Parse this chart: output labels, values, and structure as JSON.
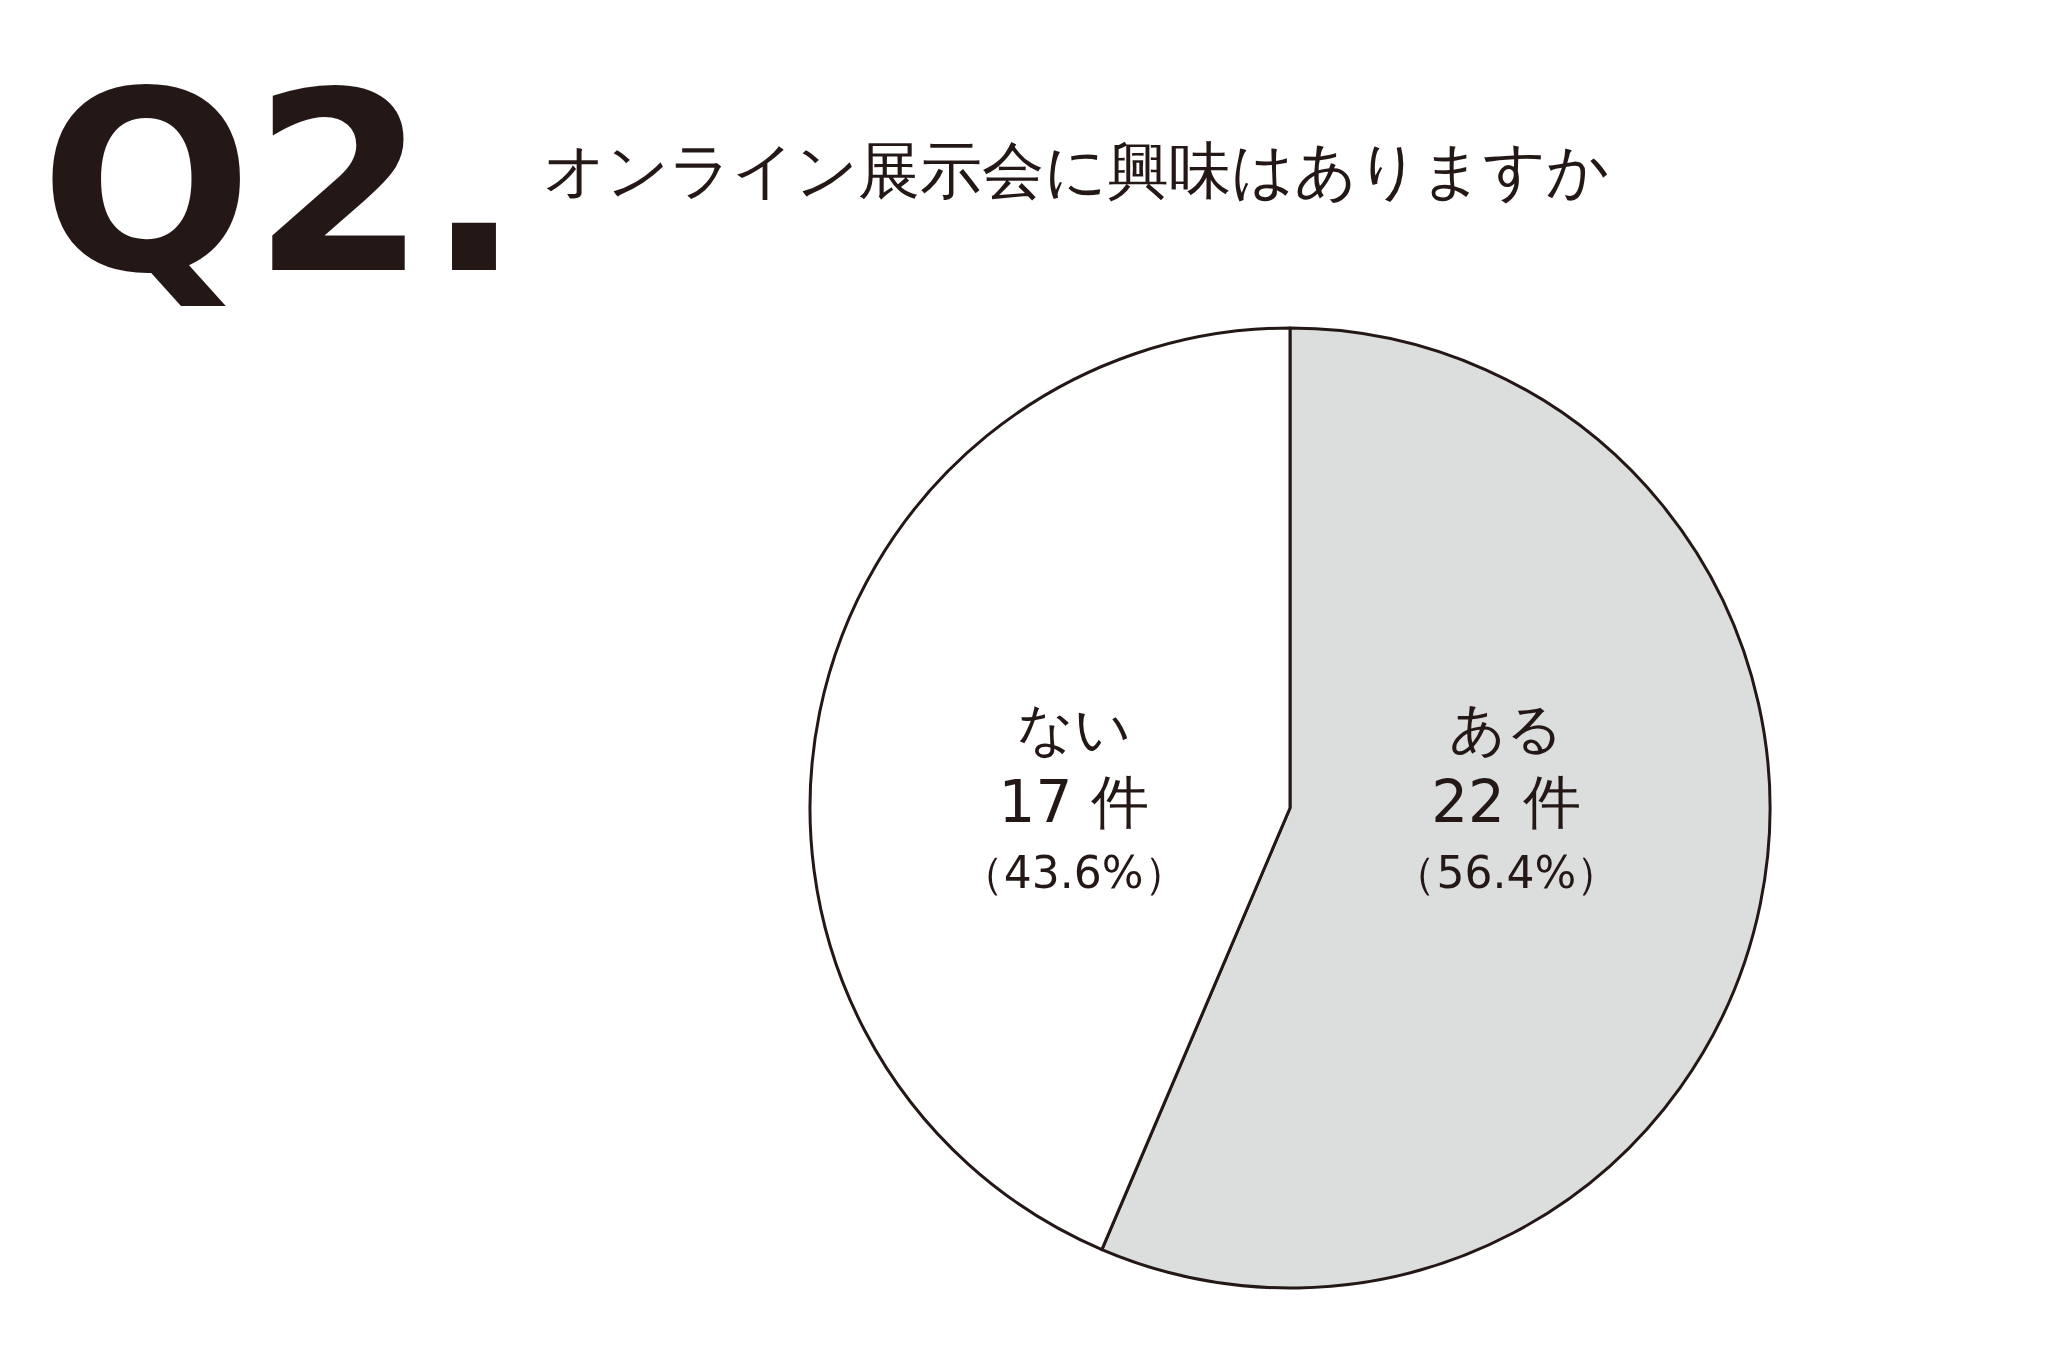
{
  "chart_data": {
    "type": "pie",
    "title": "Q2.",
    "subtitle": "オンライン展示会に興味はありますか",
    "categories": [
      "ある",
      "ない"
    ],
    "values": [
      22,
      17
    ],
    "colors": [
      "#dcdedd",
      "#ffffff"
    ],
    "value_labels": [
      "22 件",
      "17 件"
    ],
    "annotations": [
      "（56.4%）",
      "（43.6%）"
    ]
  }
}
